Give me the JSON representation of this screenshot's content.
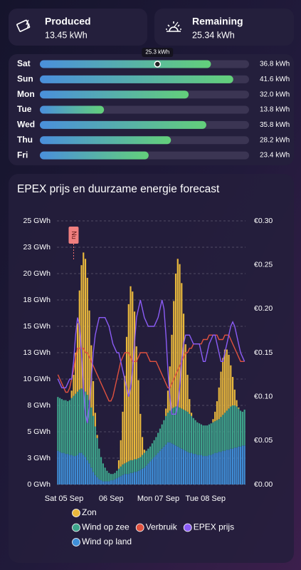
{
  "cards": [
    {
      "title": "Produced",
      "value": "13.45 kWh"
    },
    {
      "title": "Remaining",
      "value": "25.34 kWh"
    }
  ],
  "chart_data": [
    {
      "type": "progress",
      "categories": [
        "Sat",
        "Sun",
        "Mon",
        "Tue",
        "Wed",
        "Thu",
        "Fri"
      ],
      "values": [
        36.8,
        41.6,
        32.0,
        13.8,
        35.8,
        28.2,
        23.4
      ],
      "value_labels": [
        "36.8 kWh",
        "41.6 kWh",
        "32.0 kWh",
        "13.8 kWh",
        "35.8 kWh",
        "28.2 kWh",
        "23.4 kWh"
      ],
      "xlim": [
        0,
        45
      ],
      "colors": [
        "#4a8fdc",
        "#63d07a"
      ],
      "marker": {
        "value": 25.3,
        "label": "25.3 kWh"
      }
    },
    {
      "type": "bar",
      "title": "EPEX prijs en duurzame energie forecast",
      "x": [
        0,
        1,
        2,
        3,
        4,
        5,
        6,
        7,
        8,
        9,
        10,
        11,
        12,
        13,
        14,
        15,
        16,
        17,
        18,
        19,
        20,
        21,
        22,
        23,
        24,
        25,
        26,
        27,
        28,
        29,
        30,
        31,
        32,
        33,
        34,
        35,
        36,
        37,
        38,
        39,
        40,
        41,
        42,
        43,
        44,
        45,
        46,
        47,
        48,
        49,
        50,
        51,
        52,
        53,
        54,
        55,
        56,
        57,
        58,
        59,
        60,
        61,
        62,
        63,
        64,
        65,
        66,
        67,
        68,
        69,
        70,
        71,
        72,
        73,
        74,
        75,
        76,
        77,
        78,
        79,
        80,
        81,
        82,
        83,
        84,
        85,
        86,
        87,
        88,
        89,
        90,
        91,
        92,
        93,
        94,
        95
      ],
      "xlim": [
        0,
        96
      ],
      "xticks": [
        {
          "value": 0,
          "label": "Sat 05 Sep"
        },
        {
          "value": 24,
          "label": "06 Sep"
        },
        {
          "value": 48,
          "label": "Mon 07 Sep"
        },
        {
          "value": 72,
          "label": "Tue 08 Sep"
        }
      ],
      "ylim": [
        0,
        25
      ],
      "yticks": [
        {
          "value": 0,
          "label": "0 GWh"
        },
        {
          "value": 2.5,
          "label": "3 GWh"
        },
        {
          "value": 5,
          "label": "5 GWh"
        },
        {
          "value": 7.5,
          "label": "8 GWh"
        },
        {
          "value": 10,
          "label": "10 GWh"
        },
        {
          "value": 12.5,
          "label": "13 GWh"
        },
        {
          "value": 15,
          "label": "15 GWh"
        },
        {
          "value": 17.5,
          "label": "18 GWh"
        },
        {
          "value": 20,
          "label": "20 GWh"
        },
        {
          "value": 22.5,
          "label": "23 GWh"
        },
        {
          "value": 25,
          "label": "25 GWh"
        }
      ],
      "y2lim": [
        0,
        0.3
      ],
      "y2ticks": [
        {
          "value": 0,
          "label": "€0.00"
        },
        {
          "value": 0.05,
          "label": "€0.05"
        },
        {
          "value": 0.1,
          "label": "€0.10"
        },
        {
          "value": 0.15,
          "label": "€0.15"
        },
        {
          "value": 0.2,
          "label": "€0.20"
        },
        {
          "value": 0.25,
          "label": "€0.25"
        },
        {
          "value": 0.3,
          "label": "€0.30"
        }
      ],
      "grid": true,
      "annotations": [
        {
          "x": 8.5,
          "label": "Nu"
        }
      ],
      "series": [
        {
          "name": "Zon",
          "kind": "bar",
          "color": "#e9b83c",
          "values": [
            0,
            0,
            0,
            0,
            0,
            0,
            0,
            0.7,
            2,
            3.9,
            6.5,
            9.4,
            11.7,
            13,
            12.6,
            11.1,
            8.5,
            5.9,
            3.3,
            1.3,
            0.3,
            0,
            0,
            0,
            0,
            0,
            0,
            0,
            0,
            0,
            0,
            0.8,
            2.5,
            5,
            8.3,
            11.9,
            14.9,
            16.5,
            16,
            14,
            10.7,
            7.4,
            4.1,
            1.7,
            0.3,
            0,
            0,
            0,
            0,
            0,
            0,
            0,
            0,
            0,
            0,
            0.7,
            2.1,
            4.2,
            7,
            10.1,
            12.6,
            14,
            13.6,
            11.9,
            9.1,
            6.3,
            3.5,
            1.4,
            0.3,
            0,
            0,
            0,
            0,
            0,
            0,
            0,
            0,
            0,
            0,
            0.3,
            0.9,
            1.8,
            3,
            4.3,
            5.4,
            6,
            5.8,
            5.1,
            3.9,
            2.7,
            1.5,
            0.6,
            0.1,
            0,
            0,
            0
          ]
        },
        {
          "name": "Wind op zee",
          "kind": "bar",
          "color": "#3ea58c",
          "values": [
            5.1,
            5.1,
            5.1,
            5.0,
            5.1,
            5.0,
            5.2,
            5.4,
            5.7,
            5.9,
            6.0,
            6.0,
            6.1,
            6.2,
            6.2,
            6.2,
            6.0,
            5.7,
            5.3,
            4.6,
            3.7,
            2.9,
            2.2,
            1.7,
            1.3,
            1.0,
            0.8,
            0.6,
            0.6,
            0.6,
            0.7,
            0.8,
            0.9,
            1.0,
            1.0,
            1.1,
            1.2,
            1.2,
            1.2,
            1.2,
            1.2,
            1.2,
            1.2,
            1.3,
            1.4,
            1.4,
            1.4,
            1.4,
            1.5,
            1.6,
            1.7,
            1.9,
            2.1,
            2.3,
            2.5,
            2.7,
            2.8,
            3.0,
            3.3,
            3.5,
            3.7,
            3.8,
            3.8,
            3.8,
            3.8,
            3.8,
            3.8,
            3.7,
            3.5,
            3.4,
            3.2,
            3.1,
            3.0,
            2.9,
            2.9,
            2.9,
            2.9,
            2.9,
            3.0,
            3.0,
            3.0,
            3.1,
            3.1,
            3.3,
            3.4,
            3.6,
            3.7,
            3.9,
            4.0,
            4.1,
            4.0,
            3.9,
            3.6,
            3.4,
            3.2,
            3.4
          ]
        },
        {
          "name": "Verbruik",
          "kind": "line",
          "axis": "y2",
          "color": "#e0513f",
          "values": [
            0.125,
            0.12,
            0.115,
            0.11,
            0.105,
            0.105,
            0.11,
            0.12,
            0.13,
            0.145,
            0.155,
            0.155,
            0.155,
            0.155,
            0.15,
            0.15,
            0.145,
            0.14,
            0.135,
            0.13,
            0.125,
            0.12,
            0.115,
            0.11,
            0.105,
            0.1,
            0.095,
            0.095,
            0.1,
            0.11,
            0.12,
            0.13,
            0.14,
            0.145,
            0.15,
            0.15,
            0.15,
            0.145,
            0.14,
            0.14,
            0.14,
            0.145,
            0.15,
            0.15,
            0.15,
            0.15,
            0.145,
            0.14,
            0.14,
            0.14,
            0.14,
            0.135,
            0.13,
            0.125,
            0.12,
            0.115,
            0.11,
            0.11,
            0.115,
            0.12,
            0.125,
            0.13,
            0.135,
            0.14,
            0.145,
            0.15,
            0.15,
            0.155,
            0.155,
            0.16,
            0.16,
            0.16,
            0.16,
            0.16,
            0.165,
            0.165,
            0.165,
            0.17,
            0.17,
            0.17,
            0.17,
            0.17,
            0.165,
            0.165,
            0.165,
            0.17,
            0.17,
            0.17,
            0.165,
            0.16,
            0.155,
            0.15,
            0.145,
            0.14,
            0.14,
            0.14
          ]
        },
        {
          "name": "EPEX prijs",
          "kind": "line",
          "axis": "y2",
          "color": "#8b5cf6",
          "values": [
            0.12,
            0.115,
            0.11,
            0.11,
            0.11,
            0.115,
            0.12,
            0.12,
            0.14,
            0.17,
            0.19,
            0.18,
            0.15,
            0.11,
            0.08,
            0.07,
            0.09,
            0.12,
            0.15,
            0.17,
            0.18,
            0.19,
            0.19,
            0.19,
            0.19,
            0.185,
            0.18,
            0.17,
            0.16,
            0.155,
            0.15,
            0.15,
            0.14,
            0.13,
            0.12,
            0.11,
            0.1,
            0.11,
            0.13,
            0.16,
            0.19,
            0.2,
            0.21,
            0.2,
            0.19,
            0.185,
            0.18,
            0.18,
            0.18,
            0.18,
            0.185,
            0.19,
            0.2,
            0.21,
            0.2,
            0.17,
            0.13,
            0.1,
            0.08,
            0.08,
            0.08,
            0.09,
            0.11,
            0.14,
            0.16,
            0.17,
            0.17,
            0.17,
            0.165,
            0.16,
            0.16,
            0.16,
            0.16,
            0.15,
            0.14,
            0.14,
            0.15,
            0.16,
            0.165,
            0.17,
            0.17,
            0.16,
            0.15,
            0.14,
            0.14,
            0.15,
            0.16,
            0.17,
            0.18,
            0.185,
            0.18,
            0.17,
            0.16,
            0.15,
            0.145,
            0.14
          ]
        },
        {
          "name": "Wind op land",
          "kind": "bar",
          "color": "#3f8fd8",
          "values": [
            3.2,
            3.1,
            3.0,
            3.0,
            2.9,
            2.9,
            2.8,
            2.8,
            2.7,
            2.7,
            2.8,
            3.0,
            3.0,
            2.8,
            2.6,
            2.3,
            2.0,
            1.6,
            1.2,
            0.9,
            0.7,
            0.5,
            0.4,
            0.3,
            0.3,
            0.3,
            0.3,
            0.4,
            0.4,
            0.5,
            0.6,
            0.7,
            0.8,
            0.9,
            1.0,
            1.0,
            1.0,
            1.1,
            1.1,
            1.2,
            1.2,
            1.3,
            1.4,
            1.5,
            1.6,
            1.8,
            2.0,
            2.2,
            2.4,
            2.6,
            2.8,
            3.0,
            3.2,
            3.4,
            3.6,
            3.8,
            4.0,
            4.0,
            3.9,
            3.8,
            3.7,
            3.6,
            3.5,
            3.4,
            3.3,
            3.2,
            3.1,
            3.0,
            3.0,
            2.9,
            2.9,
            2.8,
            2.8,
            2.8,
            2.7,
            2.7,
            2.7,
            2.8,
            2.8,
            2.9,
            3.0,
            3.0,
            3.1,
            3.1,
            3.2,
            3.2,
            3.3,
            3.3,
            3.4,
            3.4,
            3.5,
            3.5,
            3.6,
            3.6,
            3.7,
            3.7
          ]
        }
      ]
    }
  ]
}
